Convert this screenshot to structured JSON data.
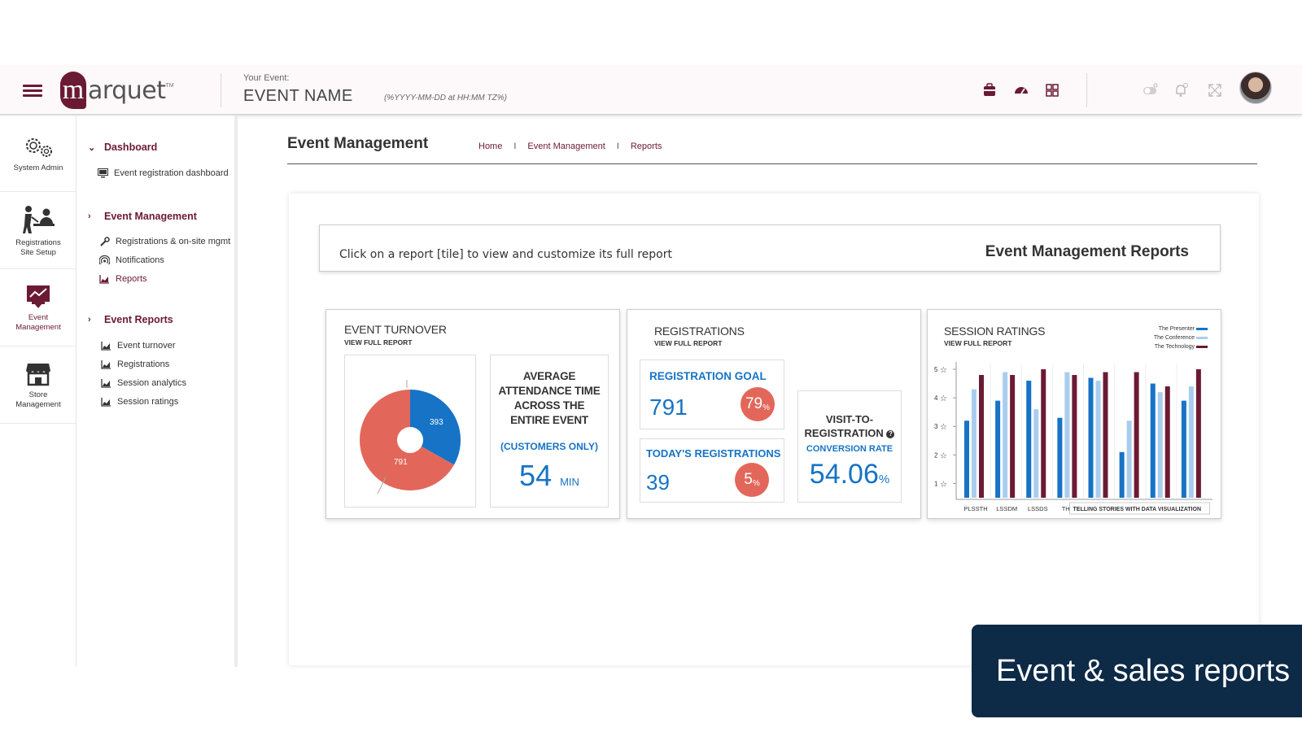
{
  "header": {
    "menu_icon": "hamburger-menu-icon",
    "logo_text": "arquet",
    "logo_mark": "m",
    "logo_tm": "TM",
    "event_label": "Your Event:",
    "event_name": "EVENT NAME",
    "event_date": "(%YYYY-MM-DD at HH:MM TZ%)",
    "brand_color": "#6b1a34"
  },
  "rail": [
    {
      "label_line1": "System Admin",
      "label_line2": "",
      "icon": "gears-icon"
    },
    {
      "label_line1": "Registrations",
      "label_line2": "Site Setup",
      "icon": "registration-desk-icon"
    },
    {
      "label_line1": "Event",
      "label_line2": "Management",
      "icon": "event-chart-icon"
    },
    {
      "label_line1": "Store",
      "label_line2": "Management",
      "icon": "store-icon"
    }
  ],
  "menu": {
    "dashboard": "Dashboard",
    "dashboard_items": [
      "Event registration dashboard"
    ],
    "event_management": "Event Management",
    "event_management_items": [
      "Registrations & on-site mgmt",
      "Notifications",
      "Reports"
    ],
    "event_reports": "Event Reports",
    "event_reports_items": [
      "Event turnover",
      "Registrations",
      "Session analytics",
      "Session ratings"
    ]
  },
  "page": {
    "title": "Event Management",
    "breadcrumb": [
      "Home",
      "Event Management",
      "Reports"
    ],
    "breadcrumb_sep": "I"
  },
  "info": {
    "text": "Click on a report [tile] to view and customize its full report",
    "title": "Event Management Reports"
  },
  "cards": {
    "view_full_report": "VIEW FULL REPORT",
    "turnover": {
      "title": "EVENT TURNOVER",
      "pie_values": [
        393,
        791
      ],
      "pie_colors": [
        "#1673c6",
        "#e2675a"
      ],
      "avg_line1": "AVERAGE",
      "avg_line2": "ATTENDANCE TIME",
      "avg_line3": "ACROSS THE",
      "avg_line4": "ENTIRE EVENT",
      "customers": "(CUSTOMERS ONLY)",
      "avg_value": "54",
      "avg_unit": "MIN"
    },
    "registrations": {
      "title": "REGISTRATIONS",
      "goal_label": "REGISTRATION GOAL",
      "goal_value": "791",
      "goal_pct": "79",
      "today_label": "TODAY'S REGISTRATIONS",
      "today_value": "39",
      "today_pct": "5",
      "pct_sign": "%",
      "visit_line1": "VISIT-TO-",
      "visit_line2": "REGISTRATION",
      "conversion_label": "CONVERSION RATE",
      "conversion_value": "54.06",
      "info_icon": "question-circle-icon"
    },
    "ratings": {
      "title": "SESSION RATINGS",
      "legend": [
        "The Presenter",
        "The Conference",
        "The Technology"
      ],
      "y_ticks": [
        "5",
        "4",
        "3",
        "2",
        "1"
      ],
      "x_labels": [
        "PLSSTH",
        "LSSDM",
        "LSSDS",
        "THDI"
      ],
      "tooltip": "TELLING STORIES WITH DATA VISUALIZATION"
    }
  },
  "chart_data": {
    "type": "bar",
    "title": "SESSION RATINGS",
    "categories": [
      "PLSSTH",
      "LSSDM",
      "LSSDS",
      "THDI",
      "TELLING STORIES WITH DATA VISUALIZATION",
      "",
      "",
      ""
    ],
    "series": [
      {
        "name": "The Presenter",
        "color": "#1673c6",
        "values": [
          3.2,
          3.9,
          4.6,
          3.3,
          4.7,
          2.1,
          4.5,
          3.9
        ]
      },
      {
        "name": "The Conference",
        "color": "#a9cdee",
        "values": [
          4.3,
          4.9,
          3.6,
          4.9,
          4.6,
          3.2,
          4.2,
          4.4
        ]
      },
      {
        "name": "The Technology",
        "color": "#6b1a34",
        "values": [
          4.8,
          4.8,
          5.0,
          4.8,
          4.9,
          4.9,
          4.4,
          5.0
        ]
      }
    ],
    "ylim": [
      0.5,
      5.2
    ],
    "y_ticks": [
      1,
      2,
      3,
      4,
      5
    ],
    "legend_position": "top-right"
  },
  "banner": {
    "text": "Event & sales reports",
    "color": "#0d2a47"
  }
}
